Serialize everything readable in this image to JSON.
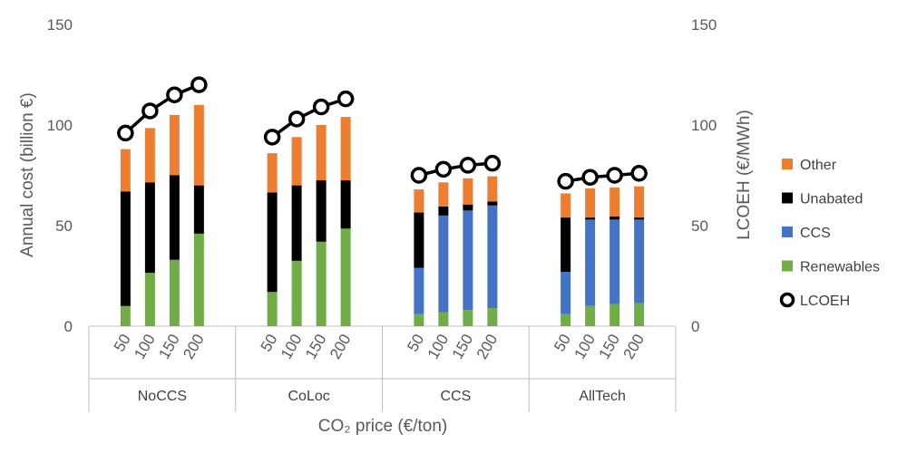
{
  "chart_data": {
    "type": "bar",
    "stacked": true,
    "xlabel": "CO₂ price (€/ton)",
    "ylabel_left": "Annual cost (billion €)",
    "ylabel_right": "LCOEH (€/MWh)",
    "ylim_left": [
      0,
      150
    ],
    "ylim_right": [
      0,
      150
    ],
    "yticks_left": [
      "0",
      "50",
      "100",
      "150"
    ],
    "yticks_right": [
      "0",
      "50",
      "100",
      "150"
    ],
    "gridlines": false,
    "legend_position": "right",
    "groups": [
      {
        "name": "NoCCS",
        "categories": [
          "50",
          "100",
          "150",
          "200"
        ],
        "renewables": [
          10,
          26.5,
          33,
          46
        ],
        "ccs": [
          0,
          0,
          0,
          0
        ],
        "unabated": [
          57,
          45,
          42,
          24
        ],
        "other": [
          21,
          27,
          30,
          40
        ],
        "lcoeh": [
          96,
          107,
          115,
          120
        ]
      },
      {
        "name": "CoLoc",
        "categories": [
          "50",
          "100",
          "150",
          "200"
        ],
        "renewables": [
          17,
          32.5,
          42,
          48.5
        ],
        "ccs": [
          0,
          0,
          0,
          0
        ],
        "unabated": [
          49.5,
          37.5,
          30.5,
          24
        ],
        "other": [
          19.5,
          24,
          27.5,
          31.5
        ],
        "lcoeh": [
          94,
          103,
          109,
          113
        ]
      },
      {
        "name": "CCS",
        "categories": [
          "50",
          "100",
          "150",
          "200"
        ],
        "renewables": [
          6,
          7,
          8,
          9
        ],
        "ccs": [
          23,
          48,
          49.5,
          51
        ],
        "unabated": [
          27.5,
          4.5,
          3,
          2
        ],
        "other": [
          11.5,
          12,
          13,
          12.5
        ],
        "lcoeh": [
          75,
          78,
          80,
          81
        ]
      },
      {
        "name": "AllTech",
        "categories": [
          "50",
          "100",
          "150",
          "200"
        ],
        "renewables": [
          6,
          10,
          11,
          11.5
        ],
        "ccs": [
          21,
          43,
          42,
          41.5
        ],
        "unabated": [
          27,
          1,
          1.5,
          1
        ],
        "other": [
          12,
          14.5,
          14.5,
          15.5
        ],
        "lcoeh": [
          72,
          74,
          75,
          76
        ]
      }
    ],
    "series": [
      {
        "key": "other",
        "name": "Other",
        "color": "#ED7D31"
      },
      {
        "key": "unabated",
        "name": "Unabated",
        "color": "#000000"
      },
      {
        "key": "ccs",
        "name": "CCS",
        "color": "#4472C4"
      },
      {
        "key": "renewables",
        "name": "Renewables",
        "color": "#70AD47"
      },
      {
        "key": "lcoeh",
        "name": "LCOEH",
        "color": "#000000",
        "marker": "circle-open"
      }
    ]
  }
}
